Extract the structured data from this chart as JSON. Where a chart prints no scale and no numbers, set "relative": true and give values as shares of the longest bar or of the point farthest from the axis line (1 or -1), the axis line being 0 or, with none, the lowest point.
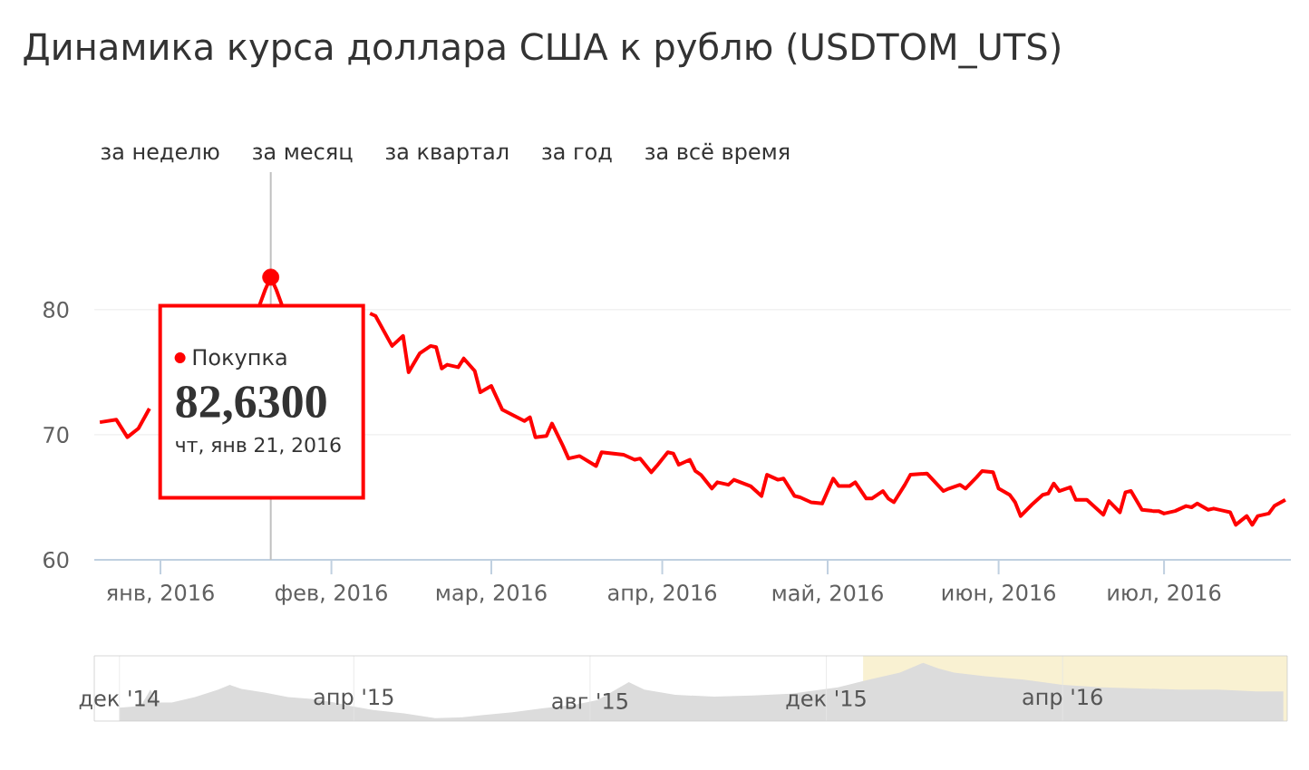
{
  "chart_data": [
    {
      "type": "line",
      "title": "Динамика курса доллара США к рублю (USDTOM_UTS)",
      "annotations": [
        "за неделю",
        "за месяц",
        "за квартал",
        "за год",
        "за всё время",
        {
          "text": "82,6300",
          "x": "2016-01-21",
          "y": 82.63
        },
        "чт, янв 21, 2016"
      ],
      "xlim": [
        "2015-12-20",
        "2016-07-24"
      ],
      "xticks": [
        {
          "value": "2016-01-01",
          "label": "янв, 2016"
        },
        {
          "value": "2016-02-01",
          "label": "фев, 2016"
        },
        {
          "value": "2016-03-01",
          "label": "мар, 2016"
        },
        {
          "value": "2016-04-01",
          "label": "апр, 2016"
        },
        {
          "value": "2016-05-01",
          "label": "май, 2016"
        },
        {
          "value": "2016-06-01",
          "label": "июн, 2016"
        },
        {
          "value": "2016-07-01",
          "label": "июл, 2016"
        }
      ],
      "ylim": [
        60,
        91
      ],
      "yticks": [
        60,
        70,
        80
      ],
      "grid": "y",
      "ref_lines": [
        {
          "axis": "x",
          "value": "2016-01-21",
          "color": "#c0c0c0"
        }
      ],
      "series": [
        {
          "name": "Покупка",
          "color": "#ff0000",
          "x": [
            "2015-12-21",
            "2015-12-24",
            "2015-12-26",
            "2015-12-28",
            "2015-12-30",
            "2016-01-08",
            "2016-01-19",
            "2016-01-20",
            "2016-01-21",
            "2016-01-22",
            "2016-01-23",
            "2016-02-01",
            "2016-02-08",
            "2016-02-09",
            "2016-02-12",
            "2016-02-14",
            "2016-02-15",
            "2016-02-17",
            "2016-02-19",
            "2016-02-20",
            "2016-02-21",
            "2016-02-22",
            "2016-02-24",
            "2016-02-25",
            "2016-02-27",
            "2016-02-28",
            "2016-03-01",
            "2016-03-03",
            "2016-03-07",
            "2016-03-08",
            "2016-03-09",
            "2016-03-11",
            "2016-03-12",
            "2016-03-14",
            "2016-03-15",
            "2016-03-17",
            "2016-03-20",
            "2016-03-21",
            "2016-03-25",
            "2016-03-27",
            "2016-03-28",
            "2016-03-30",
            "2016-03-31",
            "2016-04-02",
            "2016-04-03",
            "2016-04-04",
            "2016-04-06",
            "2016-04-07",
            "2016-04-08",
            "2016-04-10",
            "2016-04-11",
            "2016-04-13",
            "2016-04-14",
            "2016-04-17",
            "2016-04-19",
            "2016-04-20",
            "2016-04-22",
            "2016-04-23",
            "2016-04-25",
            "2016-04-26",
            "2016-04-28",
            "2016-04-30",
            "2016-05-02",
            "2016-05-03",
            "2016-05-05",
            "2016-05-06",
            "2016-05-08",
            "2016-05-09",
            "2016-05-11",
            "2016-05-12",
            "2016-05-13",
            "2016-05-15",
            "2016-05-16",
            "2016-05-19",
            "2016-05-22",
            "2016-05-23",
            "2016-05-25",
            "2016-05-26",
            "2016-05-28",
            "2016-05-29",
            "2016-05-31",
            "2016-06-01",
            "2016-06-03",
            "2016-06-04",
            "2016-06-05",
            "2016-06-07",
            "2016-06-09",
            "2016-06-10",
            "2016-06-11",
            "2016-06-12",
            "2016-06-14",
            "2016-06-15",
            "2016-06-17",
            "2016-06-20",
            "2016-06-21",
            "2016-06-23",
            "2016-06-24",
            "2016-06-25",
            "2016-06-27",
            "2016-06-29",
            "2016-06-30",
            "2016-07-01",
            "2016-07-03",
            "2016-07-05",
            "2016-07-06",
            "2016-07-07",
            "2016-07-09",
            "2016-07-10",
            "2016-07-12",
            "2016-07-13",
            "2016-07-14",
            "2016-07-16",
            "2016-07-17",
            "2016-07-18",
            "2016-07-20",
            "2016-07-21",
            "2016-07-23"
          ],
          "values": [
            71.0,
            71.2,
            69.8,
            70.5,
            72.1,
            null,
            80.4,
            81.6,
            82.6,
            81.6,
            80.4,
            null,
            79.7,
            79.5,
            77.1,
            77.9,
            75.0,
            76.5,
            77.1,
            77.0,
            75.3,
            75.6,
            75.4,
            76.1,
            75.1,
            73.4,
            73.9,
            72.0,
            71.1,
            71.4,
            69.8,
            69.9,
            70.9,
            69.1,
            68.1,
            68.3,
            67.5,
            68.6,
            68.4,
            68.0,
            68.1,
            67.0,
            67.5,
            68.6,
            68.5,
            67.6,
            68.0,
            67.1,
            66.8,
            65.7,
            66.2,
            66.0,
            66.4,
            65.9,
            65.1,
            66.8,
            66.4,
            66.5,
            65.1,
            65.0,
            64.6,
            64.5,
            66.5,
            65.9,
            65.9,
            66.2,
            64.9,
            64.9,
            65.5,
            64.9,
            64.6,
            66.0,
            66.8,
            66.9,
            65.5,
            65.7,
            66.0,
            65.7,
            66.6,
            67.1,
            67.0,
            65.7,
            65.2,
            64.6,
            63.5,
            64.4,
            65.2,
            65.3,
            66.1,
            65.5,
            65.8,
            64.8,
            64.8,
            63.6,
            64.7,
            63.8,
            65.4,
            65.5,
            64.0,
            63.9,
            63.9,
            63.7,
            63.9,
            64.3,
            64.2,
            64.5,
            64.0,
            64.1,
            63.9,
            63.8,
            62.8,
            63.5,
            62.8,
            63.5,
            63.7,
            64.3,
            64.8
          ]
        },
        {
          "type": "scatter",
          "color": "#ff0000",
          "x": [
            "2016-01-21"
          ],
          "values": [
            82.6
          ]
        }
      ]
    },
    {
      "type": "area",
      "relative": true,
      "color": "#dcdcdc",
      "tick_labels": "x",
      "grid": "x",
      "xlim": [
        "2014-11-18",
        "2016-07-26"
      ],
      "xticks": [
        {
          "value": "2014-12-01",
          "label": "дек '14"
        },
        {
          "value": "2015-04-01",
          "label": "апр '15"
        },
        {
          "value": "2015-08-01",
          "label": "авг '15"
        },
        {
          "value": "2015-12-01",
          "label": "дек '15"
        },
        {
          "value": "2016-04-01",
          "label": "апр '16"
        }
      ],
      "bands": [
        {
          "axis": "x",
          "from": "2015-12-20",
          "to": "2016-07-26",
          "color": "#f9f1d2"
        }
      ],
      "x": [
        "2014-12-01",
        "2014-12-12",
        "2014-12-17",
        "2014-12-20",
        "2014-12-28",
        "2015-01-09",
        "2015-01-21",
        "2015-01-27",
        "2015-02-02",
        "2015-02-14",
        "2015-02-26",
        "2015-03-10",
        "2015-03-22",
        "2015-03-30",
        "2015-04-11",
        "2015-04-27",
        "2015-05-13",
        "2015-05-25",
        "2015-06-06",
        "2015-06-22",
        "2015-07-08",
        "2015-07-24",
        "2015-08-05",
        "2015-08-21",
        "2015-08-29",
        "2015-09-14",
        "2015-10-04",
        "2015-10-24",
        "2015-11-13",
        "2015-12-07",
        "2015-12-23",
        "2016-01-08",
        "2016-01-20",
        "2016-01-28",
        "2016-02-05",
        "2016-02-21",
        "2016-03-12",
        "2016-04-01",
        "2016-04-21",
        "2016-05-11",
        "2016-05-31",
        "2016-06-20",
        "2016-07-10",
        "2016-07-24"
      ],
      "values": [
        0.23,
        0.26,
        0.54,
        0.32,
        0.32,
        0.41,
        0.54,
        0.62,
        0.55,
        0.49,
        0.41,
        0.38,
        0.32,
        0.26,
        0.19,
        0.13,
        0.05,
        0.06,
        0.1,
        0.15,
        0.22,
        0.28,
        0.36,
        0.67,
        0.54,
        0.45,
        0.42,
        0.44,
        0.47,
        0.58,
        0.71,
        0.83,
        1,
        0.9,
        0.83,
        0.77,
        0.71,
        0.62,
        0.58,
        0.56,
        0.54,
        0.54,
        0.51,
        0.51
      ]
    }
  ]
}
